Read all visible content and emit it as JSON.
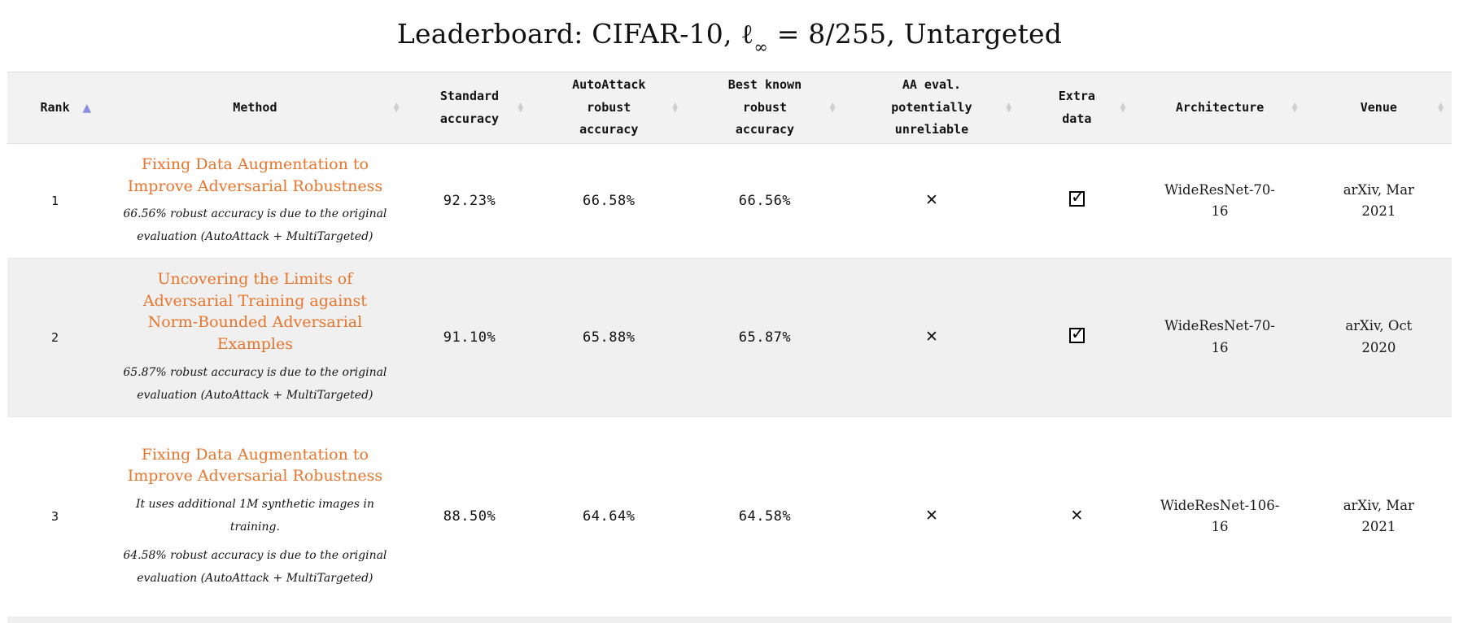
{
  "page": {
    "title": {
      "prefix": "Leaderboard: CIFAR-10, ",
      "ell": "ℓ",
      "ell_subscript": "∞",
      "suffix": " = 8/255, Untargeted"
    }
  },
  "icons": {
    "sort_ascending": "▲",
    "sort_up": "▲",
    "sort_down": "▼",
    "cross": "✕",
    "check": "✓"
  },
  "colors": {
    "link_orange": "#e8752c",
    "sorted_arrow_purple": "#8e8ee0",
    "unsorted_arrow_gray": "#cfcfcf",
    "stripe_gray": "#f0f0f0",
    "header_gray": "#f2f2f2"
  },
  "table": {
    "columns": [
      {
        "id": "rank",
        "label": "Rank",
        "sorted": "ascending"
      },
      {
        "id": "method",
        "label": "Method",
        "sorted": "none"
      },
      {
        "id": "standard_accuracy",
        "label": "Standard accuracy",
        "sorted": "none"
      },
      {
        "id": "autoattack_robust_accuracy",
        "label": "AutoAttack robust accuracy",
        "sorted": "none"
      },
      {
        "id": "best_known_robust_accuracy",
        "label": "Best known robust accuracy",
        "sorted": "none"
      },
      {
        "id": "aa_eval_potentially_unreliable",
        "label": "AA eval. potentially unreliable",
        "sorted": "none"
      },
      {
        "id": "extra_data",
        "label": "Extra data",
        "sorted": "none"
      },
      {
        "id": "architecture",
        "label": "Architecture",
        "sorted": "none"
      },
      {
        "id": "venue",
        "label": "Venue",
        "sorted": "none"
      }
    ],
    "rows": [
      {
        "rank": "1",
        "method_title": "Fixing Data Augmentation to Improve Adversarial Robustness",
        "notes": [
          "66.56% robust accuracy is due to the original evaluation (AutoAttack + MultiTargeted)"
        ],
        "standard_accuracy": "92.23%",
        "autoattack_robust_accuracy": "66.58%",
        "best_known_robust_accuracy": "66.56%",
        "aa_eval_potentially_unreliable": false,
        "extra_data": true,
        "architecture": "WideResNet-70-16",
        "venue": "arXiv, Mar 2021"
      },
      {
        "rank": "2",
        "method_title": "Uncovering the Limits of Adversarial Training against Norm-Bounded Adversarial Examples",
        "notes": [
          "65.87% robust accuracy is due to the original evaluation (AutoAttack + MultiTargeted)"
        ],
        "standard_accuracy": "91.10%",
        "autoattack_robust_accuracy": "65.88%",
        "best_known_robust_accuracy": "65.87%",
        "aa_eval_potentially_unreliable": false,
        "extra_data": true,
        "architecture": "WideResNet-70-16",
        "venue": "arXiv, Oct 2020"
      },
      {
        "rank": "3",
        "method_title": "Fixing Data Augmentation to Improve Adversarial Robustness",
        "notes": [
          "It uses additional 1M synthetic images in training.",
          "64.58% robust accuracy is due to the original evaluation (AutoAttack + MultiTargeted)"
        ],
        "standard_accuracy": "88.50%",
        "autoattack_robust_accuracy": "64.64%",
        "best_known_robust_accuracy": "64.58%",
        "aa_eval_potentially_unreliable": false,
        "extra_data": false,
        "architecture": "WideResNet-106-16",
        "venue": "arXiv, Mar 2021"
      }
    ]
  }
}
